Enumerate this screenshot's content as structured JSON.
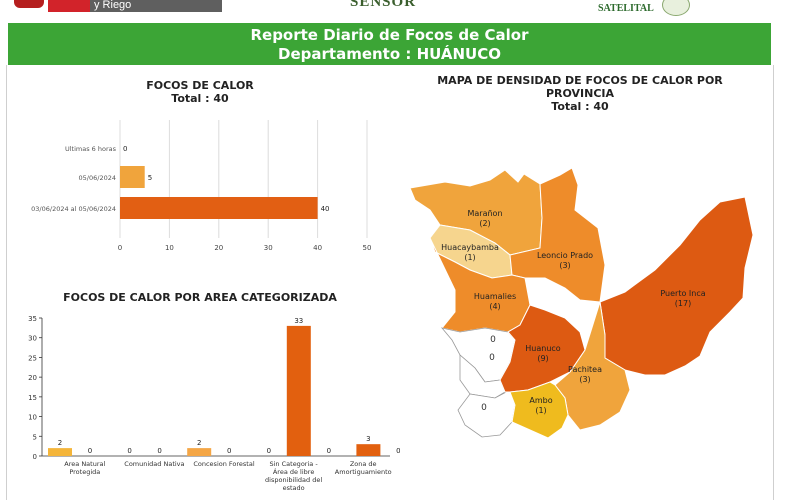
{
  "top": {
    "gov_text": "y Riego",
    "center_logo": "SENSOR",
    "right_logo": "SATELITAL"
  },
  "header": {
    "title": "Reporte Diario de Focos de Calor",
    "subtitle": "Departamento : HUÁNUCO"
  },
  "focos": {
    "title": "FOCOS DE CALOR",
    "total": "Total : 40"
  },
  "mapa": {
    "title": "MAPA DE DENSIDAD DE FOCOS DE CALOR POR PROVINCIA",
    "total": "Total : 40",
    "provinces": [
      {
        "name": "Marañon",
        "count": 2,
        "color": "#f0a43c"
      },
      {
        "name": "Huacaybamba",
        "count": 1,
        "color": "#f6d58e"
      },
      {
        "name": "Leoncio Prado",
        "count": 3,
        "color": "#ee8c2a"
      },
      {
        "name": "Huamalies",
        "count": 4,
        "color": "#ee8c2a"
      },
      {
        "name": "Puerto Inca",
        "count": 17,
        "color": "#dd5a12"
      },
      {
        "name": "Huanuco",
        "count": 9,
        "color": "#dd5a12"
      },
      {
        "name": "Pachitea",
        "count": 3,
        "color": "#f0a43c"
      },
      {
        "name": "Ambo",
        "count": 1,
        "color": "#efbb1e"
      }
    ],
    "zero_labels": [
      "0",
      "0",
      "0"
    ]
  },
  "area": {
    "title": "FOCOS DE CALOR POR AREA CATEGORIZADA"
  },
  "chart_data": [
    {
      "type": "bar",
      "orientation": "horizontal",
      "title": "FOCOS DE CALOR",
      "subtitle": "Total : 40",
      "categories": [
        "Ultimas 6 horas",
        "05/06/2024",
        "03/06/2024  al  05/06/2024"
      ],
      "values": [
        0,
        5,
        40
      ],
      "xlim": [
        0,
        50
      ],
      "xticks": [
        0,
        10,
        20,
        30,
        40,
        50
      ],
      "grid": true,
      "colors": {
        "bar": "#e25f13",
        "bar_light": "#f0a43c"
      }
    },
    {
      "type": "bar",
      "title": "FOCOS DE CALOR POR AREA CATEGORIZADA",
      "categories": [
        "Area Natural Protegida",
        "Comunidad Nativa",
        "Concesion Forestal",
        "Sin Categoria - Area de libre disponibilidad del estado",
        "Zona de Amortiguamiento"
      ],
      "category_labels": [
        [
          "Area Natural",
          "Protegida"
        ],
        [
          "Comunidad Nativa"
        ],
        [
          "Concesion Forestal"
        ],
        [
          "Sin Categoria -",
          "Área de libre",
          "disponibilidad del",
          "estado"
        ],
        [
          "Zona de",
          "Amortiguamiento"
        ]
      ],
      "series": [
        {
          "values": [
            2,
            0,
            2,
            0,
            0
          ]
        },
        {
          "values": [
            0,
            0,
            0,
            33,
            3
          ]
        },
        {
          "values": [
            0,
            0,
            0,
            0,
            0
          ]
        }
      ],
      "ylim": [
        0,
        35
      ],
      "yticks": [
        0,
        5,
        10,
        15,
        20,
        25,
        30,
        35
      ],
      "colors": {
        "yellow": "#f4b53a",
        "light_orange": "#f4a646",
        "orange": "#e2600f"
      }
    }
  ]
}
